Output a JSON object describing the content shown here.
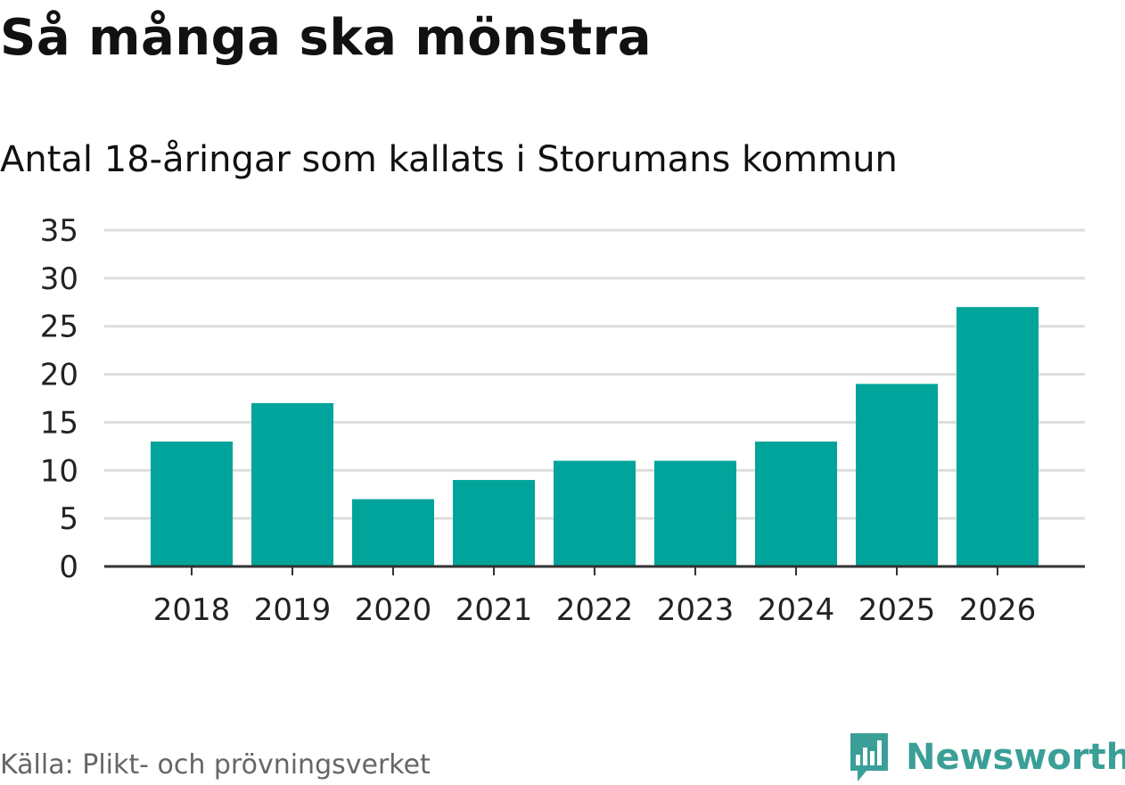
{
  "colors": {
    "bar": "#00a49a",
    "grid": "#dddddd",
    "axis": "#333333",
    "logo": "#3a9f97"
  },
  "source": "Källa: Plikt- och prövningsverket",
  "brand": {
    "name": "Newsworthy",
    "icon": "newsworthy-logo-icon"
  },
  "chart_data": {
    "type": "bar",
    "title": "Så många ska mönstra",
    "subtitle": "Antal 18-åringar som kallats i Storumans kommun",
    "xlabel": "",
    "ylabel": "",
    "categories": [
      "2018",
      "2019",
      "2020",
      "2021",
      "2022",
      "2023",
      "2024",
      "2025",
      "2026"
    ],
    "values": [
      13,
      17,
      7,
      9,
      11,
      11,
      13,
      19,
      27
    ],
    "ylim": [
      0,
      35
    ],
    "yticks": [
      "0",
      "5",
      "10",
      "15",
      "20",
      "25",
      "30",
      "35"
    ],
    "grid": true,
    "legend": "none"
  }
}
